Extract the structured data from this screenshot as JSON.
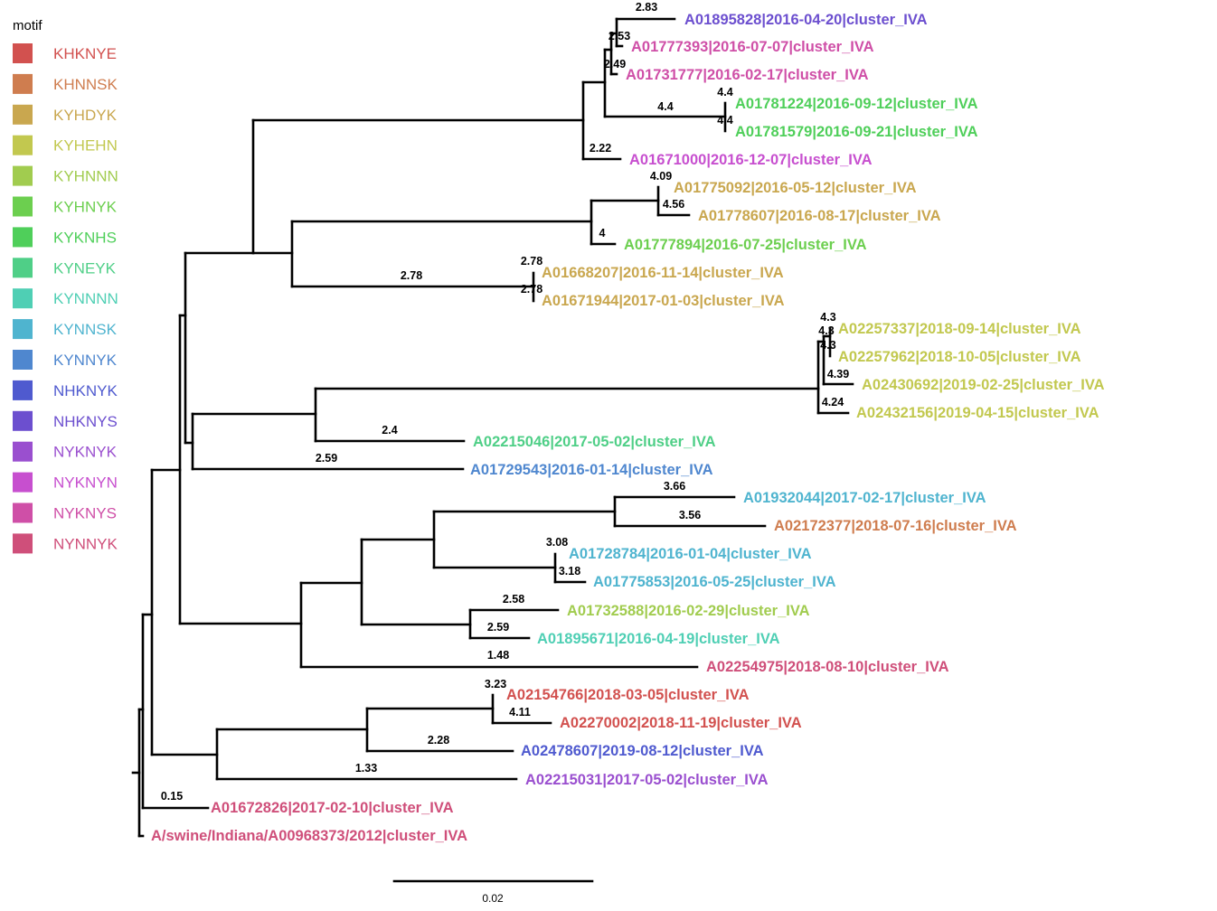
{
  "legend": {
    "title": "motif",
    "items": [
      {
        "label": "KHKNYE",
        "color": "#D2514F"
      },
      {
        "label": "KHNNSK",
        "color": "#CF7D4F"
      },
      {
        "label": "KYHDYK",
        "color": "#C9A74F"
      },
      {
        "label": "KYHEHN",
        "color": "#C2C84F"
      },
      {
        "label": "KYHNNN",
        "color": "#A1CC4F"
      },
      {
        "label": "KYHNYK",
        "color": "#6CCF4F"
      },
      {
        "label": "KYKNHS",
        "color": "#4FCF5A"
      },
      {
        "label": "KYNEYK",
        "color": "#4FCF87"
      },
      {
        "label": "KYNNNN",
        "color": "#4FCFB4"
      },
      {
        "label": "KYNNSK",
        "color": "#4FB4CF"
      },
      {
        "label": "KYNNYK",
        "color": "#4F87CF"
      },
      {
        "label": "NHKNYK",
        "color": "#4F5ACF"
      },
      {
        "label": "NHKNYS",
        "color": "#6C4FCF"
      },
      {
        "label": "NYKNYK",
        "color": "#9A4FCF"
      },
      {
        "label": "NYKNYN",
        "color": "#C74FCF"
      },
      {
        "label": "NYKNYS",
        "color": "#CF4FA7"
      },
      {
        "label": "NYNNYK",
        "color": "#CF4F7A"
      }
    ]
  },
  "tips": [
    {
      "label": "A01895828|2016-04-20|cluster_IVA",
      "motif": "NHKNYS"
    },
    {
      "label": "A01777393|2016-07-07|cluster_IVA",
      "motif": "NYKNYS"
    },
    {
      "label": "A01731777|2016-02-17|cluster_IVA",
      "motif": "NYKNYS"
    },
    {
      "label": "A01781224|2016-09-12|cluster_IVA",
      "motif": "KYKNHS"
    },
    {
      "label": "A01781579|2016-09-21|cluster_IVA",
      "motif": "KYKNHS"
    },
    {
      "label": "A01671000|2016-12-07|cluster_IVA",
      "motif": "NYKNYN"
    },
    {
      "label": "A01775092|2016-05-12|cluster_IVA",
      "motif": "KYHDYK"
    },
    {
      "label": "A01778607|2016-08-17|cluster_IVA",
      "motif": "KYHDYK"
    },
    {
      "label": "A01777894|2016-07-25|cluster_IVA",
      "motif": "KYHNYK"
    },
    {
      "label": "A01668207|2016-11-14|cluster_IVA",
      "motif": "KYHDYK"
    },
    {
      "label": "A01671944|2017-01-03|cluster_IVA",
      "motif": "KYHDYK"
    },
    {
      "label": "A02257337|2018-09-14|cluster_IVA",
      "motif": "KYHEHN"
    },
    {
      "label": "A02257962|2018-10-05|cluster_IVA",
      "motif": "KYHEHN"
    },
    {
      "label": "A02430692|2019-02-25|cluster_IVA",
      "motif": "KYHEHN"
    },
    {
      "label": "A02432156|2019-04-15|cluster_IVA",
      "motif": "KYHEHN"
    },
    {
      "label": "A02215046|2017-05-02|cluster_IVA",
      "motif": "KYNEYK"
    },
    {
      "label": "A01729543|2016-01-14|cluster_IVA",
      "motif": "KYNNYK"
    },
    {
      "label": "A01932044|2017-02-17|cluster_IVA",
      "motif": "KYNNSK"
    },
    {
      "label": "A02172377|2018-07-16|cluster_IVA",
      "motif": "KHNNSK"
    },
    {
      "label": "A01728784|2016-01-04|cluster_IVA",
      "motif": "KYNNSK"
    },
    {
      "label": "A01775853|2016-05-25|cluster_IVA",
      "motif": "KYNNSK"
    },
    {
      "label": "A01732588|2016-02-29|cluster_IVA",
      "motif": "KYHNNN"
    },
    {
      "label": "A01895671|2016-04-19|cluster_IVA",
      "motif": "KYNNNN"
    },
    {
      "label": "A02254975|2018-08-10|cluster_IVA",
      "motif": "NYNNYK"
    },
    {
      "label": "A02154766|2018-03-05|cluster_IVA",
      "motif": "KHKNYE"
    },
    {
      "label": "A02270002|2018-11-19|cluster_IVA",
      "motif": "KHKNYE"
    },
    {
      "label": "A02478607|2019-08-12|cluster_IVA",
      "motif": "NHKNYK"
    },
    {
      "label": "A02215031|2017-05-02|cluster_IVA",
      "motif": "NYKNYK"
    },
    {
      "label": "A01672826|2017-02-10|cluster_IVA",
      "motif": "NYNNYK"
    },
    {
      "label": "A/swine/Indiana/A00968373/2012|cluster_IVA",
      "motif": "NYNNYK"
    }
  ],
  "branch_labels": [
    "2.83",
    "2.53",
    "2.49",
    "4.4",
    "4.4",
    "4.4",
    "2.22",
    "4.09",
    "4.56",
    "4",
    "2.78",
    "2.78",
    "2.78",
    "4.3",
    "4.3",
    "4.3",
    "4.39",
    "4.24",
    "2.4",
    "2.59",
    "3.66",
    "3.56",
    "3.08",
    "3.18",
    "2.58",
    "2.59",
    "1.48",
    "3.23",
    "4.11",
    "2.28",
    "1.33",
    "0.15"
  ],
  "scale_bar": {
    "label": "0.02"
  }
}
